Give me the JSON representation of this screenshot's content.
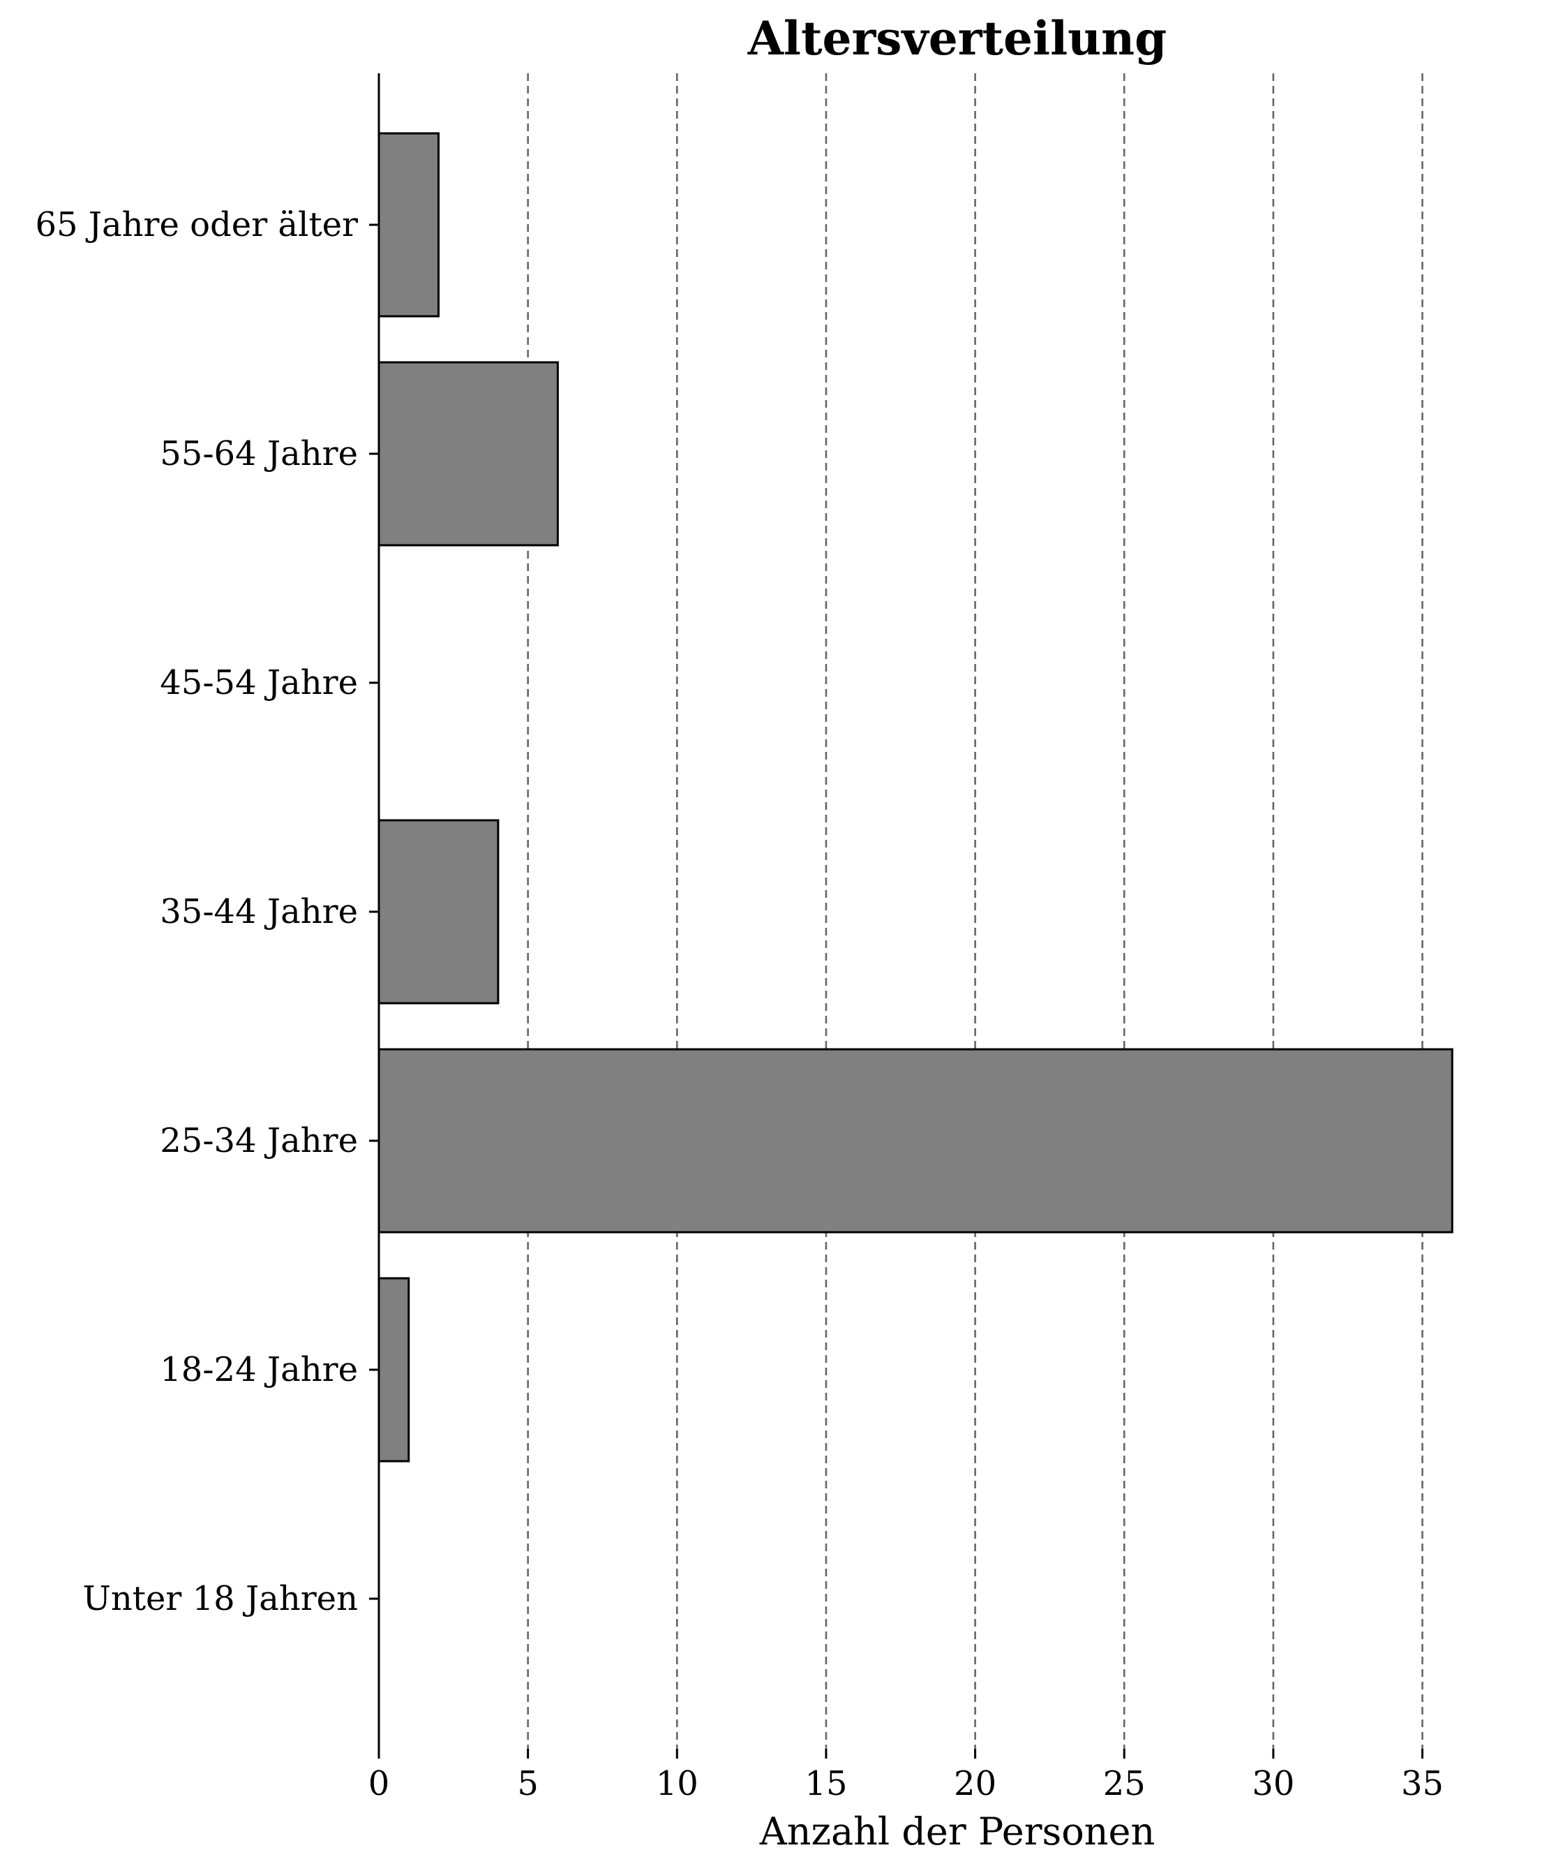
{
  "chart_data": {
    "type": "bar",
    "orientation": "horizontal",
    "title": "Altersverteilung",
    "xlabel": "Anzahl der Personen",
    "ylabel": "",
    "categories": [
      "Unter 18 Jahren",
      "18-24 Jahre",
      "25-34 Jahre",
      "35-44 Jahre",
      "45-54 Jahre",
      "55-64 Jahre",
      "65 Jahre oder älter"
    ],
    "values": [
      0,
      1,
      36,
      4,
      0,
      6,
      2
    ],
    "xlim": [
      0,
      37
    ],
    "xticks": [
      0,
      5,
      10,
      15,
      20,
      25,
      30,
      35
    ],
    "xtick_labels": [
      "0",
      "5",
      "10",
      "15",
      "20",
      "25",
      "30",
      "35"
    ],
    "grid": "x, dashed",
    "bar_color": "#808080",
    "edge_color": "#000000"
  }
}
